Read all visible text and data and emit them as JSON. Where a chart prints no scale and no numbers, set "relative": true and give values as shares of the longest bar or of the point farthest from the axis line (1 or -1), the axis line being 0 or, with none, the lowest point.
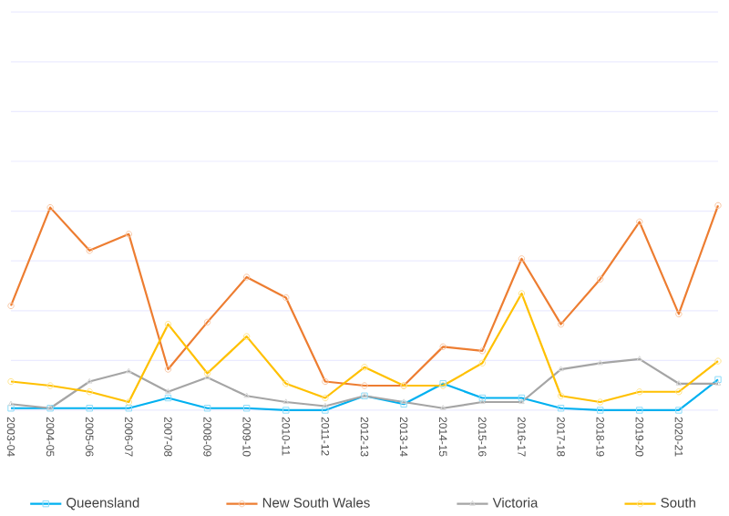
{
  "chart_data": {
    "type": "line",
    "relative": true,
    "grid": "y",
    "legend": "bottom",
    "categories": [
      "2003-04",
      "2004-05",
      "2005-06",
      "2006-07",
      "2007-08",
      "2008-09",
      "2009-10",
      "2010-11",
      "2011-12",
      "2012-13",
      "2013-14",
      "2014-15",
      "2015-16",
      "2016-17",
      "2017-18",
      "2018-19",
      "2019-20",
      "2020-21",
      null
    ],
    "series": [
      {
        "name": "Queensland",
        "color": "#00b0f0",
        "marker": "square",
        "values": [
          0.01,
          0.01,
          0.01,
          0.01,
          0.06,
          0.01,
          0.01,
          0,
          0,
          0.07,
          0.03,
          0.13,
          0.06,
          0.06,
          0.01,
          0,
          0,
          0,
          0.15
        ]
      },
      {
        "name": "New South Wales",
        "color": "#ed7d31",
        "marker": "circle",
        "values": [
          0.51,
          0.99,
          0.78,
          0.86,
          0.2,
          0.43,
          0.65,
          0.55,
          0.14,
          0.12,
          0.12,
          0.31,
          0.29,
          0.74,
          0.42,
          0.64,
          0.92,
          0.47,
          1
        ]
      },
      {
        "name": "Victoria",
        "color": "#a5a5a5",
        "marker": "triangle",
        "values": [
          0.03,
          0.01,
          0.14,
          0.19,
          0.09,
          0.16,
          0.07,
          0.04,
          0.02,
          0.07,
          0.04,
          0.01,
          0.04,
          0.04,
          0.2,
          0.23,
          0.25,
          0.13,
          0.13
        ]
      },
      {
        "name": "South",
        "color": "#ffc000",
        "marker": "circle",
        "values": [
          0.14,
          0.12,
          0.09,
          0.04,
          0.42,
          0.18,
          0.36,
          0.13,
          0.06,
          0.21,
          0.12,
          0.12,
          0.23,
          0.57,
          0.07,
          0.04,
          0.09,
          0.09,
          0.24
        ]
      }
    ]
  }
}
